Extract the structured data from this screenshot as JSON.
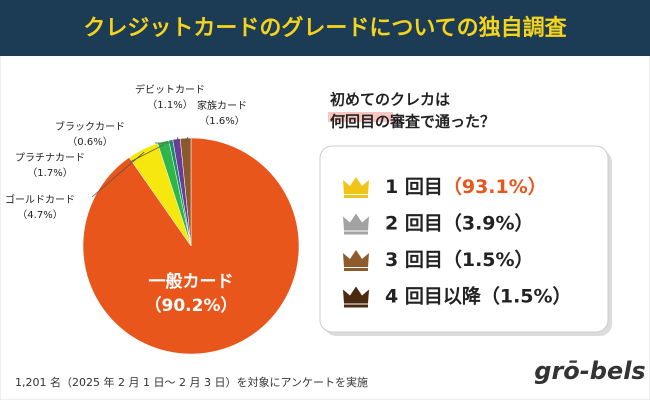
{
  "header": {
    "title": "クレジットカードのグレードについての独自調査"
  },
  "chart_data": [
    {
      "type": "pie",
      "categories": [
        "一般カード",
        "ゴールドカード",
        "プラチナカード",
        "ブラックカード",
        "デビットカード",
        "家族カード"
      ],
      "values": [
        90.2,
        4.7,
        1.7,
        0.6,
        1.1,
        1.6
      ],
      "value_labels": [
        "（90.2%）",
        "（4.7%）",
        "（1.7%）",
        "（0.6%）",
        "（1.1%）",
        "（1.6%）"
      ],
      "colors": [
        "#e9561b",
        "#f6e80e",
        "#2fb64a",
        "#1c8c6c",
        "#6b3c96",
        "#8a5a2e"
      ]
    },
    {
      "type": "ranking",
      "title_lines": [
        "初めてのクレカは",
        "何回目の審査で通った？"
      ],
      "categories": [
        "1 回目",
        "2 回目",
        "3 回目",
        "4 回目以降"
      ],
      "values": [
        93.1,
        3.9,
        1.5,
        1.5
      ],
      "value_labels": [
        "（93.1%）",
        "（3.9%）",
        "（1.5%）",
        "（1.5%）"
      ],
      "colors": [
        "#f2c417",
        "#a3a3a3",
        "#8e5b2c",
        "#4b2a12"
      ],
      "label_colors": [
        "#e9561b",
        "#222222",
        "#222222",
        "#222222"
      ]
    }
  ],
  "footnote": "1,201 名（2025 年 2 月 1 日～ 2 月 3 日）を対象にアンケートを実施",
  "logo": "grō-bels"
}
